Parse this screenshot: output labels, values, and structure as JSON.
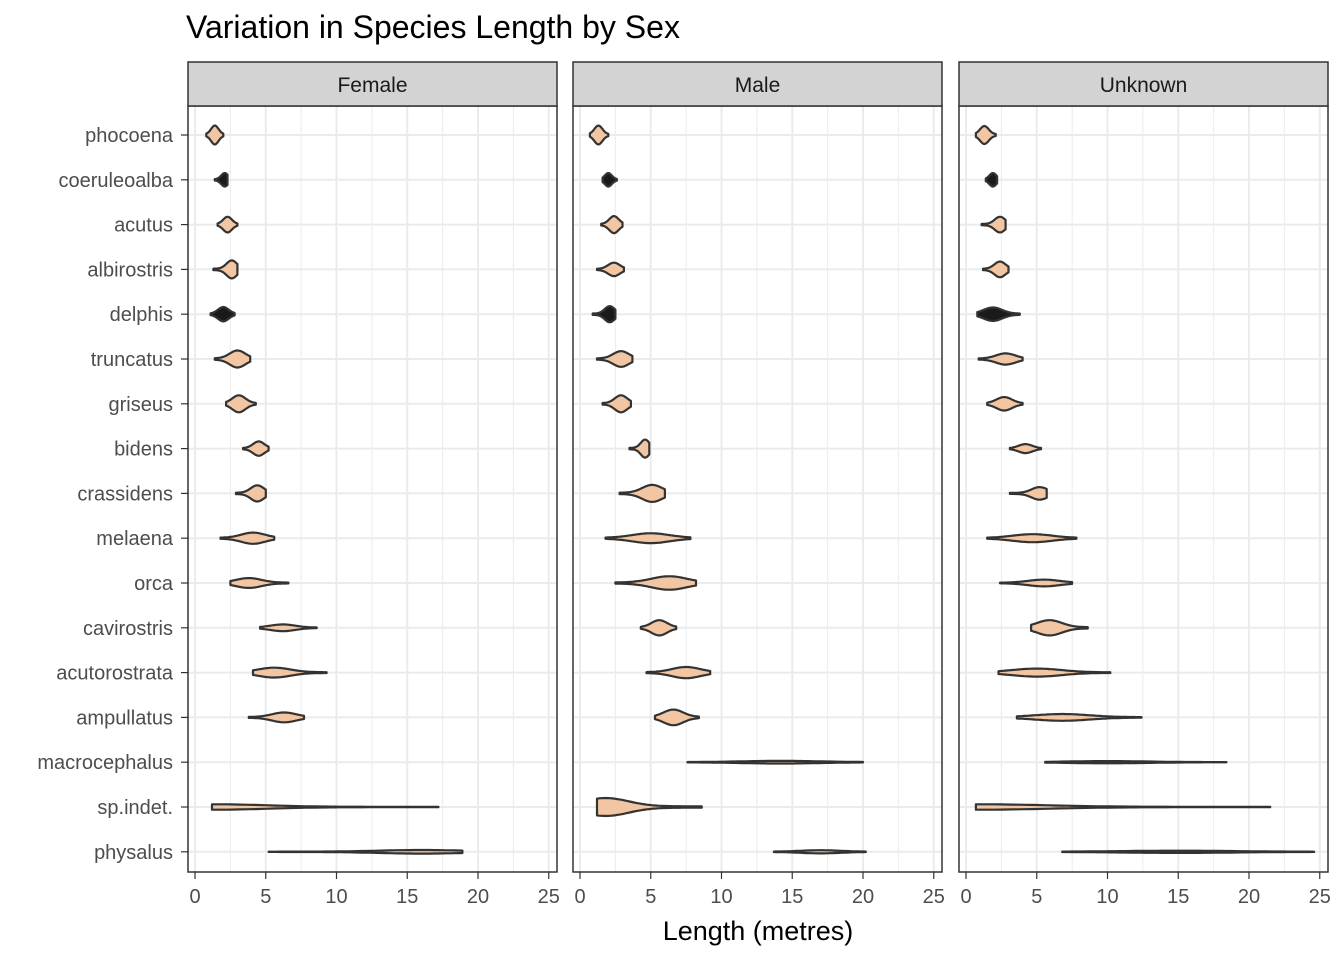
{
  "chart_data": {
    "type": "violin",
    "title": "Variation in Species Length by Sex",
    "xlabel": "Length (metres)",
    "ylabel": "",
    "xlim": [
      0,
      25
    ],
    "xticks": [
      0,
      5,
      10,
      15,
      20,
      25
    ],
    "categories": [
      "phocoena",
      "coeruleoalba",
      "acutus",
      "albirostris",
      "delphis",
      "truncatus",
      "griseus",
      "bidens",
      "crassidens",
      "melaena",
      "orca",
      "cavirostris",
      "acutorostrata",
      "ampullatus",
      "macrocephalus",
      "sp.indet.",
      "physalus"
    ],
    "facets": [
      "Female",
      "Male",
      "Unknown"
    ],
    "grid": true,
    "colors": {
      "fill": "#f2c6a2",
      "dark_fill": "#1a1a1a",
      "stroke": "#333333",
      "strip": "#d3d3d3",
      "grid": "#ebebeb"
    },
    "violins": {
      "Female": [
        {
          "min": 0.8,
          "max": 2.0,
          "mode": 1.4,
          "w": 0.42
        },
        {
          "min": 1.4,
          "max": 2.3,
          "mode": 2.1,
          "w": 0.3,
          "dark": true
        },
        {
          "min": 1.6,
          "max": 3.0,
          "mode": 2.3,
          "w": 0.35
        },
        {
          "min": 1.3,
          "max": 3.0,
          "mode": 2.6,
          "w": 0.4
        },
        {
          "min": 1.1,
          "max": 2.8,
          "mode": 2.0,
          "w": 0.32,
          "dark": true
        },
        {
          "min": 1.4,
          "max": 3.9,
          "mode": 3.0,
          "w": 0.38
        },
        {
          "min": 2.2,
          "max": 4.3,
          "mode": 3.1,
          "w": 0.38
        },
        {
          "min": 3.4,
          "max": 5.2,
          "mode": 4.5,
          "w": 0.32
        },
        {
          "min": 2.9,
          "max": 5.0,
          "mode": 4.4,
          "w": 0.36
        },
        {
          "min": 1.8,
          "max": 5.6,
          "mode": 4.1,
          "w": 0.25
        },
        {
          "min": 2.5,
          "max": 6.6,
          "mode": 3.8,
          "w": 0.22
        },
        {
          "min": 4.6,
          "max": 8.6,
          "mode": 6.2,
          "w": 0.15
        },
        {
          "min": 4.1,
          "max": 9.3,
          "mode": 5.6,
          "w": 0.22
        },
        {
          "min": 3.8,
          "max": 7.7,
          "mode": 6.3,
          "w": 0.22
        },
        null,
        {
          "min": 1.2,
          "max": 17.2,
          "mode": 1.6,
          "w": 0.12
        },
        {
          "min": 5.2,
          "max": 18.9,
          "mode": 16.0,
          "w": 0.08
        }
      ],
      "Male": [
        {
          "min": 0.7,
          "max": 2.0,
          "mode": 1.3,
          "w": 0.42
        },
        {
          "min": 1.6,
          "max": 2.6,
          "mode": 2.0,
          "w": 0.3,
          "dark": true
        },
        {
          "min": 1.5,
          "max": 3.0,
          "mode": 2.4,
          "w": 0.38
        },
        {
          "min": 1.2,
          "max": 3.1,
          "mode": 2.4,
          "w": 0.3
        },
        {
          "min": 0.9,
          "max": 2.5,
          "mode": 2.1,
          "w": 0.36,
          "dark": true
        },
        {
          "min": 1.2,
          "max": 3.7,
          "mode": 2.9,
          "w": 0.35
        },
        {
          "min": 1.6,
          "max": 3.6,
          "mode": 2.9,
          "w": 0.38
        },
        {
          "min": 3.5,
          "max": 4.9,
          "mode": 4.6,
          "w": 0.4
        },
        {
          "min": 2.8,
          "max": 6.0,
          "mode": 5.1,
          "w": 0.38
        },
        {
          "min": 1.8,
          "max": 7.8,
          "mode": 5.0,
          "w": 0.22
        },
        {
          "min": 2.5,
          "max": 8.2,
          "mode": 6.3,
          "w": 0.3
        },
        {
          "min": 4.3,
          "max": 6.8,
          "mode": 5.6,
          "w": 0.34
        },
        {
          "min": 4.7,
          "max": 9.2,
          "mode": 7.5,
          "w": 0.25
        },
        {
          "min": 5.3,
          "max": 8.4,
          "mode": 6.6,
          "w": 0.35
        },
        {
          "min": 7.6,
          "max": 20.0,
          "mode": 14.2,
          "w": 0.06
        },
        {
          "min": 1.2,
          "max": 8.6,
          "mode": 1.8,
          "w": 0.4
        },
        {
          "min": 13.7,
          "max": 20.2,
          "mode": 17.0,
          "w": 0.07
        }
      ],
      "Unknown": [
        {
          "min": 0.7,
          "max": 2.1,
          "mode": 1.3,
          "w": 0.4
        },
        {
          "min": 1.4,
          "max": 2.2,
          "mode": 1.9,
          "w": 0.3,
          "dark": true
        },
        {
          "min": 1.1,
          "max": 2.8,
          "mode": 2.4,
          "w": 0.35
        },
        {
          "min": 1.2,
          "max": 3.0,
          "mode": 2.4,
          "w": 0.35
        },
        {
          "min": 0.8,
          "max": 3.8,
          "mode": 1.9,
          "w": 0.3,
          "dark": true
        },
        {
          "min": 0.9,
          "max": 4.0,
          "mode": 2.8,
          "w": 0.25
        },
        {
          "min": 1.5,
          "max": 4.0,
          "mode": 2.7,
          "w": 0.3
        },
        {
          "min": 3.1,
          "max": 5.3,
          "mode": 4.2,
          "w": 0.2
        },
        {
          "min": 3.1,
          "max": 5.7,
          "mode": 5.2,
          "w": 0.28
        },
        {
          "min": 1.5,
          "max": 7.8,
          "mode": 4.7,
          "w": 0.18
        },
        {
          "min": 2.4,
          "max": 7.5,
          "mode": 5.5,
          "w": 0.15
        },
        {
          "min": 4.6,
          "max": 8.6,
          "mode": 5.9,
          "w": 0.34
        },
        {
          "min": 2.3,
          "max": 10.2,
          "mode": 5.0,
          "w": 0.18
        },
        {
          "min": 3.6,
          "max": 12.4,
          "mode": 6.8,
          "w": 0.15
        },
        {
          "min": 5.6,
          "max": 18.4,
          "mode": 10.0,
          "w": 0.05
        },
        {
          "min": 0.7,
          "max": 21.5,
          "mode": 1.2,
          "w": 0.12
        },
        {
          "min": 6.8,
          "max": 24.6,
          "mode": 15.0,
          "w": 0.05
        }
      ]
    }
  }
}
